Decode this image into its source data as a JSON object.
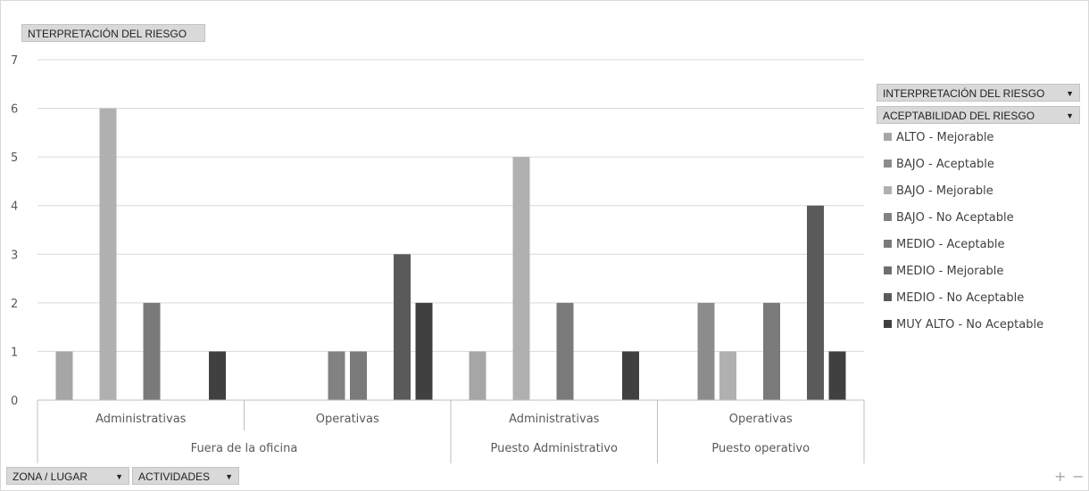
{
  "title_button": "NTERPRETACIÓN DEL RIESGO",
  "legend_fields": [
    {
      "label": "INTERPRETACIÓN DEL RIESGO",
      "icon": "dropdown-arrow"
    },
    {
      "label": "ACEPTABILIDAD DEL RIESGO",
      "icon": "dropdown-arrow"
    }
  ],
  "axis_fields": [
    {
      "label": "ZONA / LUGAR",
      "icon": "dropdown-arrow"
    },
    {
      "label": "ACTIVIDADES",
      "icon": "dropdown-arrow"
    }
  ],
  "zoom": {
    "plus": "+",
    "minus": "−"
  },
  "chart_data": {
    "type": "bar",
    "ylim": [
      0,
      7
    ],
    "yticks": [
      "0",
      "1",
      "2",
      "3",
      "4",
      "5",
      "6",
      "7"
    ],
    "grid": true,
    "legend_position": "right",
    "groups": [
      {
        "name": "Fuera de la oficina",
        "categories": [
          "Administrativas",
          "Operativas"
        ]
      },
      {
        "name": "Puesto Administrativo",
        "categories": [
          "Administrativas"
        ]
      },
      {
        "name": "Puesto operativo",
        "categories": [
          "Operativas"
        ]
      }
    ],
    "categories": [
      "Administrativas",
      "Operativas",
      "Administrativas",
      "Operativas"
    ],
    "series": [
      {
        "name": "ALTO - Mejorable",
        "color": "#a6a6a6",
        "values": [
          1,
          0,
          1,
          0
        ]
      },
      {
        "name": "BAJO - Aceptable",
        "color": "#8c8c8c",
        "values": [
          0,
          0,
          0,
          2
        ]
      },
      {
        "name": "BAJO - Mejorable",
        "color": "#b0b0b0",
        "values": [
          6,
          0,
          5,
          1
        ]
      },
      {
        "name": "BAJO - No Aceptable",
        "color": "#828282",
        "values": [
          0,
          1,
          0,
          0
        ]
      },
      {
        "name": "MEDIO - Aceptable",
        "color": "#7a7a7a",
        "values": [
          2,
          1,
          2,
          2
        ]
      },
      {
        "name": "MEDIO - Mejorable",
        "color": "#6e6e6e",
        "values": [
          0,
          0,
          0,
          0
        ]
      },
      {
        "name": "MEDIO - No Aceptable",
        "color": "#5a5a5a",
        "values": [
          0,
          3,
          0,
          4
        ]
      },
      {
        "name": "MUY ALTO - No Aceptable",
        "color": "#404040",
        "values": [
          1,
          2,
          1,
          1
        ]
      }
    ]
  }
}
